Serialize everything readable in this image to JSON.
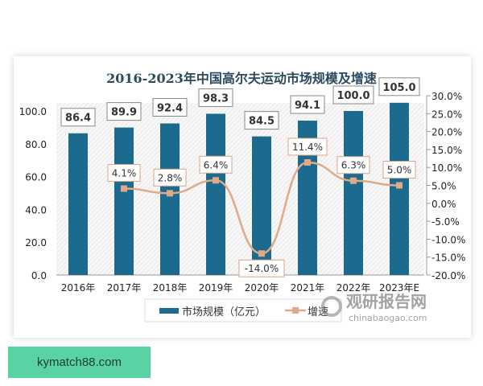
{
  "chart_data": {
    "type": "bar",
    "title": "2016-2023年中国高尔夫运动市场规模及增速",
    "categories": [
      "2016年",
      "2017年",
      "2018年",
      "2019年",
      "2020年",
      "2021年",
      "2022年",
      "2023年E"
    ],
    "series": [
      {
        "name": "市场规模（亿元）",
        "type": "bar",
        "axis": "left",
        "values": [
          86.4,
          89.9,
          92.4,
          98.3,
          84.5,
          94.1,
          100.0,
          105.0
        ],
        "labels": [
          "86.4",
          "89.9",
          "92.4",
          "98.3",
          "84.5",
          "94.1",
          "100.0",
          "105.0"
        ]
      },
      {
        "name": "增速",
        "type": "line",
        "axis": "right",
        "values": [
          null,
          4.1,
          2.8,
          6.4,
          -14.0,
          11.4,
          6.3,
          5.0
        ],
        "labels": [
          "",
          "4.1%",
          "2.8%",
          "6.4%",
          "-14.0%",
          "11.4%",
          "6.3%",
          "5.0%"
        ]
      }
    ],
    "left_axis": {
      "ylim": [
        0,
        100
      ],
      "ticks": [
        "0.0",
        "20.0",
        "40.0",
        "60.0",
        "80.0",
        "100.0"
      ]
    },
    "right_axis": {
      "ylim": [
        -20,
        30
      ],
      "ticks": [
        "-20.0%",
        "-15.0%",
        "-10.0%",
        "-5.0%",
        "0.0%",
        "5.0%",
        "10.0%",
        "15.0%",
        "20.0%",
        "25.0%",
        "30.0%"
      ]
    },
    "legend_position": "bottom",
    "colors": {
      "bar": "#1c6a8e",
      "line": "#e0a98a"
    }
  },
  "watermark": {
    "name": "观研报告网",
    "url": "chinabaogao.com"
  },
  "badge": {
    "text": "kymatch88.com"
  }
}
